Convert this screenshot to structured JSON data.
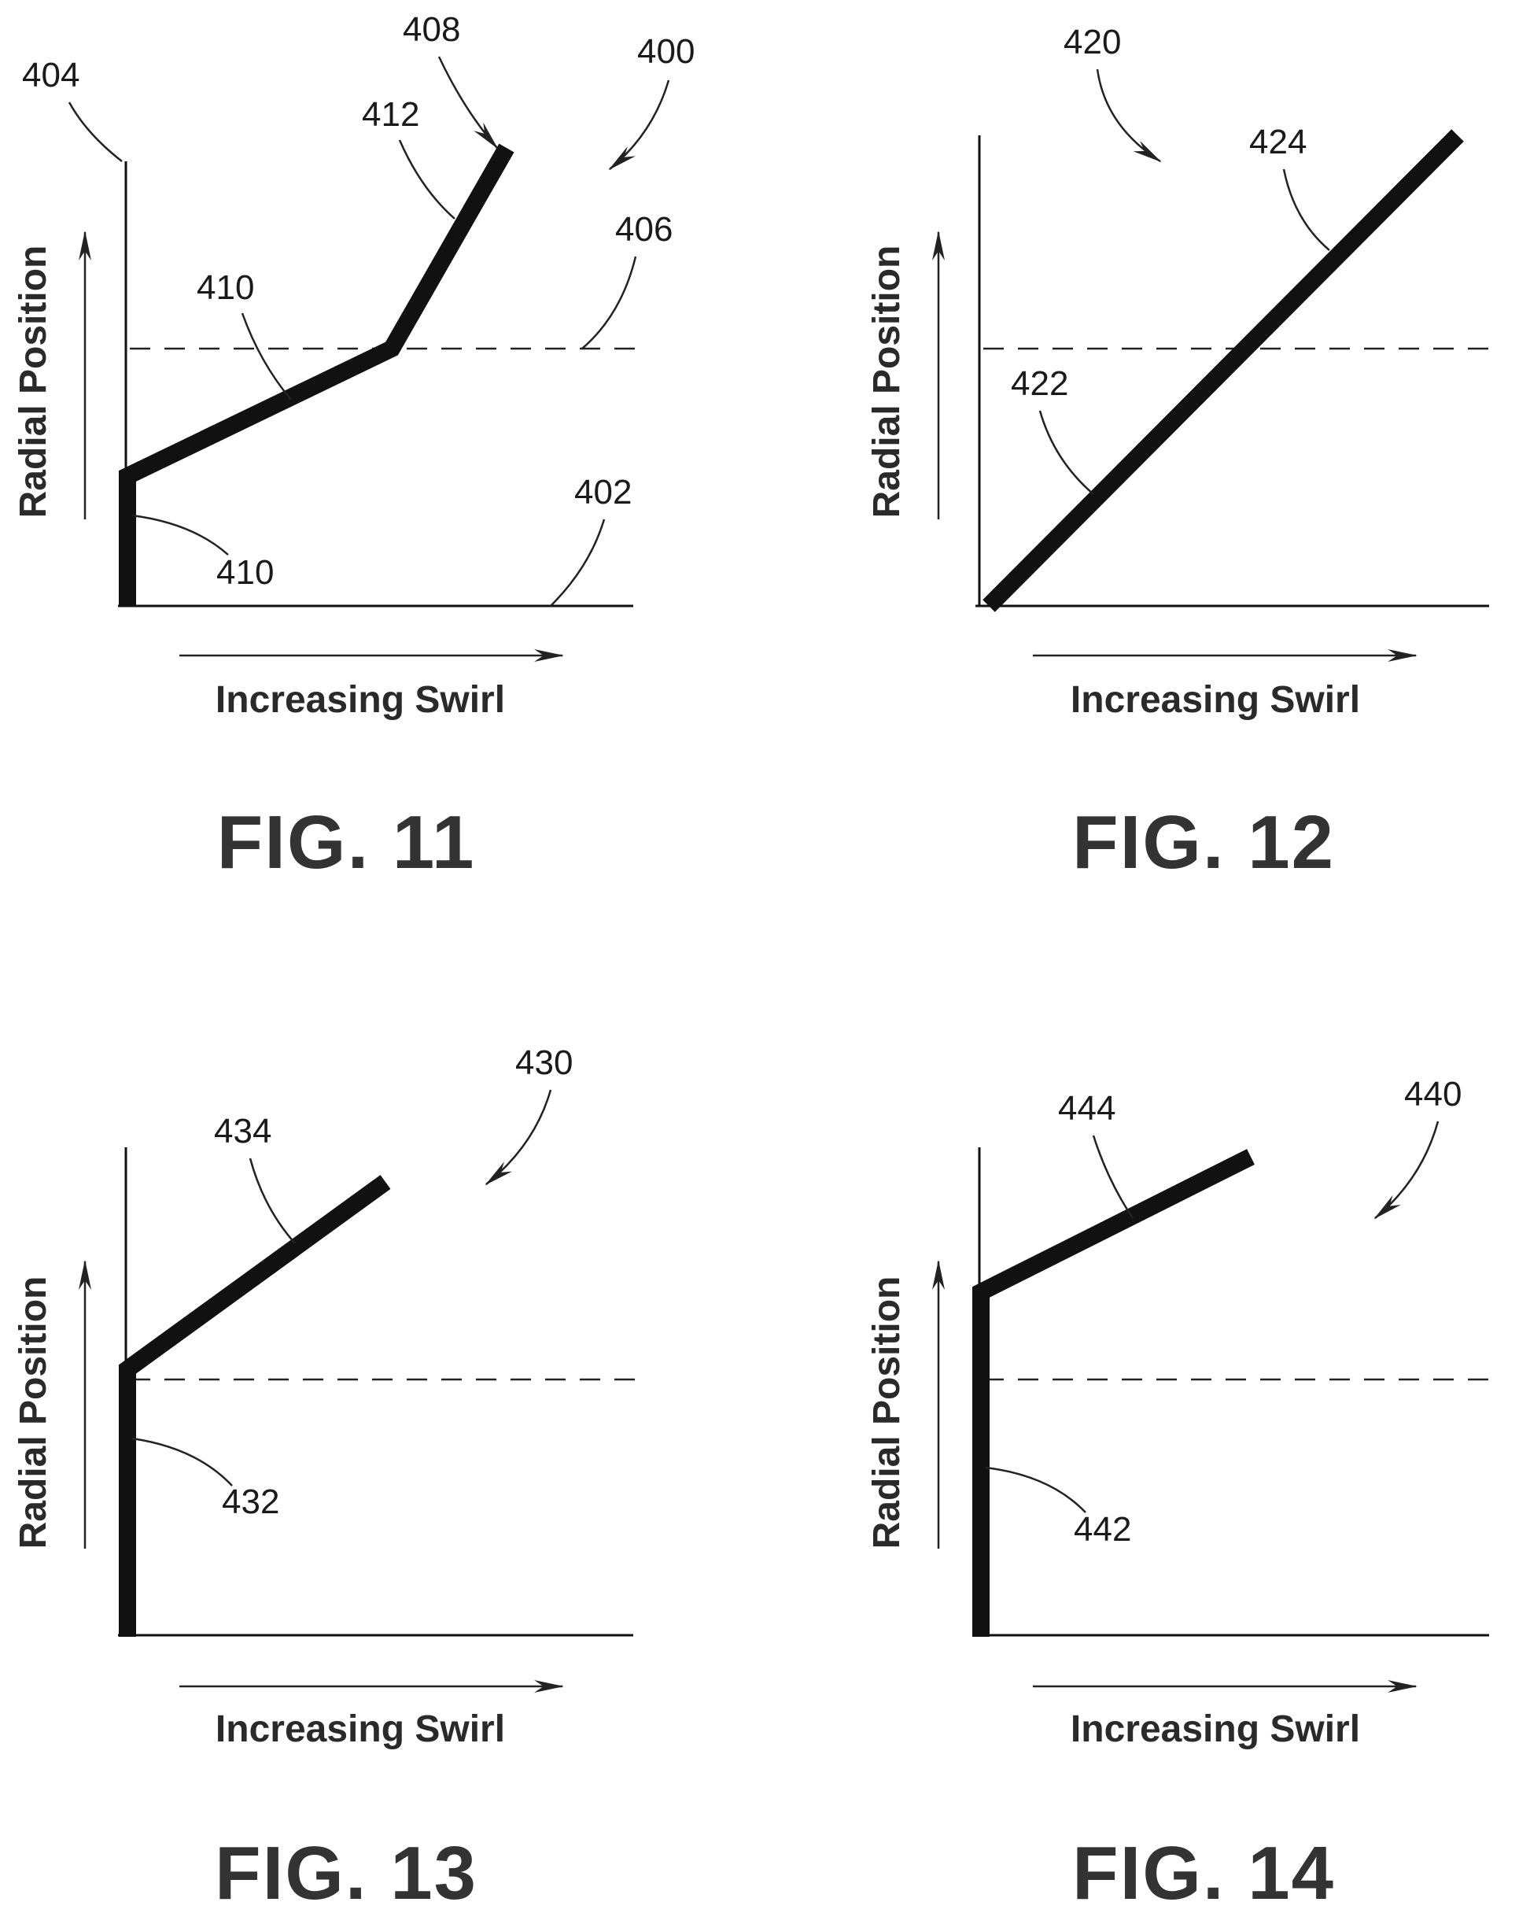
{
  "figures": [
    {
      "id": "fig11",
      "caption": "FIG. 11",
      "ylabel": "Radial Position",
      "xlabel": "Increasing Swirl",
      "refs": {
        "figure": "400",
        "x_axis": "402",
        "y_axis": "404",
        "threshold": "406",
        "profile": "408",
        "lower_segment": "410",
        "middle_segment": "410",
        "upper_segment": "412"
      }
    },
    {
      "id": "fig12",
      "caption": "FIG. 12",
      "ylabel": "Radial Position",
      "xlabel": "Increasing Swirl",
      "refs": {
        "figure": "420",
        "lower_segment": "422",
        "upper_segment": "424"
      }
    },
    {
      "id": "fig13",
      "caption": "FIG. 13",
      "ylabel": "Radial Position",
      "xlabel": "Increasing Swirl",
      "refs": {
        "figure": "430",
        "lower_segment": "432",
        "upper_segment": "434"
      }
    },
    {
      "id": "fig14",
      "caption": "FIG. 14",
      "ylabel": "Radial Position",
      "xlabel": "Increasing Swirl",
      "refs": {
        "figure": "440",
        "lower_segment": "442",
        "upper_segment": "444"
      }
    }
  ],
  "colors": {
    "line": "#111111",
    "background": "#ffffff"
  }
}
